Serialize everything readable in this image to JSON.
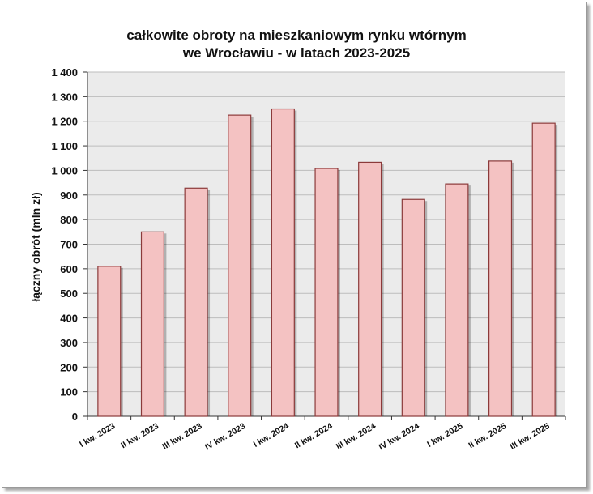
{
  "chart_data": {
    "type": "bar",
    "title_lines": [
      "całkowite obroty na mieszkaniowym rynku wtórnym",
      "we Wrocławiu - w latach 2023-2025"
    ],
    "xlabel": "",
    "ylabel": "łączny obrót (mln zł)",
    "ylim": [
      0,
      1400
    ],
    "yticks": [
      0,
      100,
      200,
      300,
      400,
      500,
      600,
      700,
      800,
      900,
      1000,
      1100,
      1200,
      1300,
      1400
    ],
    "ytick_labels": [
      "0",
      "100",
      "200",
      "300",
      "400",
      "500",
      "600",
      "700",
      "800",
      "900",
      "1 000",
      "1 100",
      "1 200",
      "1 300",
      "1 400"
    ],
    "grid": true,
    "categories": [
      "I kw. 2023",
      "II kw. 2023",
      "III kw. 2023",
      "IV kw. 2023",
      "I kw. 2024",
      "II kw. 2024",
      "III kw. 2024",
      "IV kw. 2024",
      "I kw. 2025",
      "II kw. 2025",
      "III kw. 2025"
    ],
    "values": [
      610,
      750,
      928,
      1225,
      1250,
      1008,
      1033,
      882,
      945,
      1038,
      1192
    ],
    "colors": {
      "bar_fill": "#f4c2c2",
      "bar_stroke": "#8b3a3a",
      "plot_bg": "#ebebeb",
      "grid": "#bdbdbd"
    }
  }
}
